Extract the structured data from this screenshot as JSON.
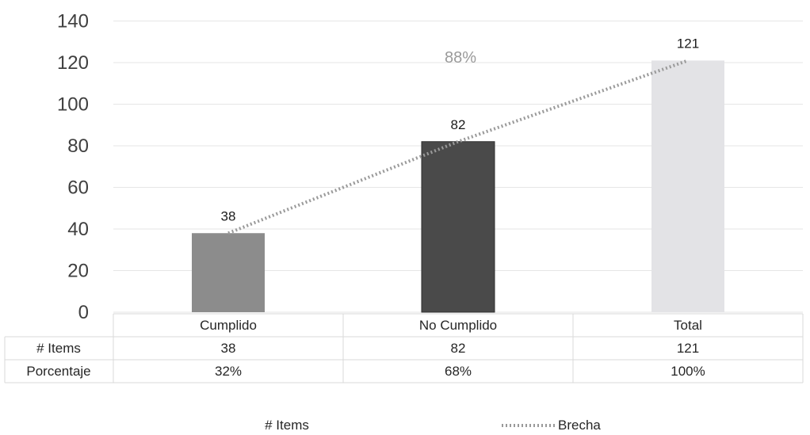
{
  "chart_data": {
    "type": "bar",
    "categories": [
      "Cumplido",
      "No Cumplido",
      "Total"
    ],
    "values": [
      38,
      82,
      121
    ],
    "bar_colors": [
      "#8c8c8c",
      "#4a4a4a",
      "#e3e3e6"
    ],
    "ylim": [
      0,
      140
    ],
    "yticks": [
      "0",
      "20",
      "40",
      "60",
      "80",
      "100",
      "120",
      "140"
    ],
    "grid": true,
    "data_labels": [
      "38",
      "82",
      "121"
    ],
    "line_series": {
      "name": "Brecha",
      "values": [
        38,
        82,
        121
      ],
      "style": "dotted",
      "color": "#9a9a9a"
    },
    "annotation": "88%",
    "table": {
      "rows": [
        {
          "label": "# Items",
          "cells": [
            "38",
            "82",
            "121"
          ]
        },
        {
          "label": "Porcentaje",
          "cells": [
            "32%",
            "68%",
            "100%"
          ]
        }
      ]
    },
    "legend": {
      "position": "bottom",
      "items": [
        "# Items",
        "Brecha"
      ]
    }
  }
}
